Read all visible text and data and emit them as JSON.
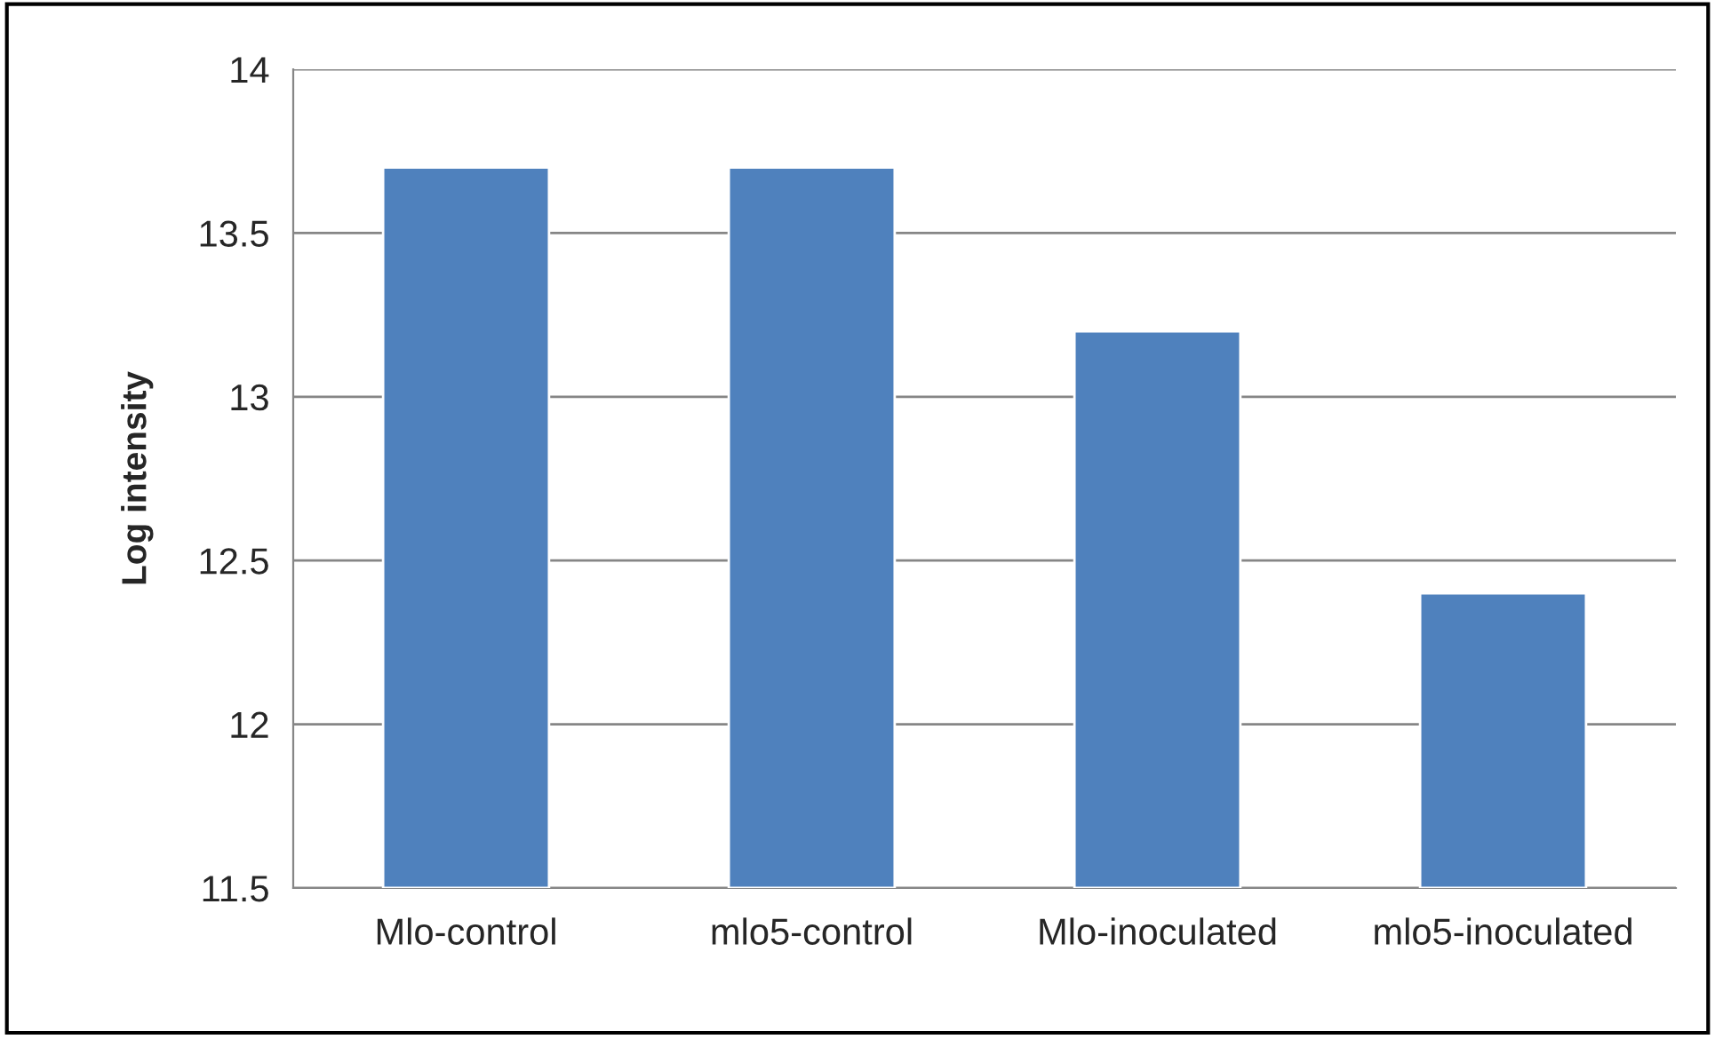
{
  "chart_data": {
    "type": "bar",
    "ylabel": "Log intensity",
    "categories": [
      "Mlo-control",
      "mlo5-control",
      "Mlo-inoculated",
      "mlo5-inoculated"
    ],
    "values": [
      13.7,
      13.7,
      13.2,
      12.4
    ],
    "color": "#4f81bd",
    "ylim": [
      11.5,
      14
    ],
    "yticks": [
      11.5,
      12,
      12.5,
      13,
      13.5,
      14
    ],
    "grid": "y",
    "legend": false
  }
}
